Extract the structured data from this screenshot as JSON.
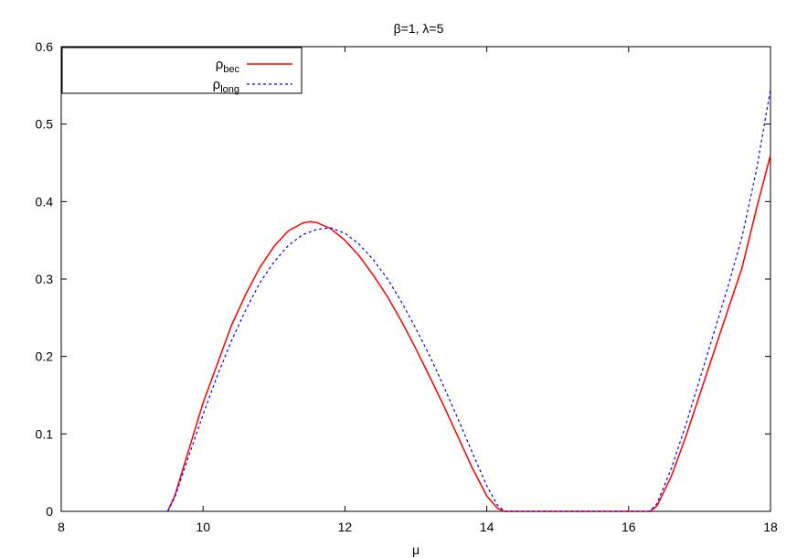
{
  "chart_data": {
    "type": "line",
    "title": "β=1, λ=5",
    "xlabel": "μ",
    "ylabel": "",
    "xlim": [
      8,
      18
    ],
    "ylim": [
      0,
      0.6
    ],
    "x_ticks": [
      "8",
      "10",
      "12",
      "14",
      "16",
      "18"
    ],
    "y_ticks": [
      "0",
      "0.1",
      "0.2",
      "0.3",
      "0.4",
      "0.5",
      "0.6"
    ],
    "grid": false,
    "legend_position": "top-left",
    "series": [
      {
        "name_main": "ρ",
        "name_sub": "bec",
        "color": "#ff0000",
        "style": "solid",
        "points": [
          [
            9.5,
            0.0
          ],
          [
            9.6,
            0.02
          ],
          [
            9.8,
            0.08
          ],
          [
            10.0,
            0.14
          ],
          [
            10.2,
            0.19
          ],
          [
            10.4,
            0.24
          ],
          [
            10.6,
            0.28
          ],
          [
            10.8,
            0.315
          ],
          [
            11.0,
            0.342
          ],
          [
            11.2,
            0.362
          ],
          [
            11.4,
            0.372
          ],
          [
            11.5,
            0.374
          ],
          [
            11.6,
            0.373
          ],
          [
            11.8,
            0.365
          ],
          [
            12.0,
            0.35
          ],
          [
            12.2,
            0.33
          ],
          [
            12.4,
            0.305
          ],
          [
            12.6,
            0.277
          ],
          [
            12.8,
            0.245
          ],
          [
            13.0,
            0.21
          ],
          [
            13.2,
            0.173
          ],
          [
            13.4,
            0.135
          ],
          [
            13.6,
            0.095
          ],
          [
            13.8,
            0.055
          ],
          [
            14.0,
            0.02
          ],
          [
            14.15,
            0.004
          ],
          [
            14.25,
            0.0
          ],
          [
            16.3,
            0.0
          ],
          [
            16.4,
            0.007
          ],
          [
            16.6,
            0.045
          ],
          [
            16.8,
            0.095
          ],
          [
            17.0,
            0.15
          ],
          [
            17.2,
            0.205
          ],
          [
            17.4,
            0.26
          ],
          [
            17.6,
            0.315
          ],
          [
            17.8,
            0.39
          ],
          [
            18.0,
            0.46
          ]
        ]
      },
      {
        "name_main": "ρ",
        "name_sub": "long",
        "color": "#0000ff",
        "style": "dashed",
        "points": [
          [
            9.5,
            0.0
          ],
          [
            9.6,
            0.018
          ],
          [
            9.8,
            0.072
          ],
          [
            10.0,
            0.125
          ],
          [
            10.2,
            0.175
          ],
          [
            10.4,
            0.22
          ],
          [
            10.6,
            0.26
          ],
          [
            10.8,
            0.295
          ],
          [
            11.0,
            0.322
          ],
          [
            11.2,
            0.343
          ],
          [
            11.4,
            0.357
          ],
          [
            11.6,
            0.364
          ],
          [
            11.8,
            0.366
          ],
          [
            12.0,
            0.359
          ],
          [
            12.2,
            0.345
          ],
          [
            12.4,
            0.325
          ],
          [
            12.6,
            0.3
          ],
          [
            12.8,
            0.27
          ],
          [
            13.0,
            0.236
          ],
          [
            13.2,
            0.2
          ],
          [
            13.4,
            0.16
          ],
          [
            13.6,
            0.118
          ],
          [
            13.8,
            0.075
          ],
          [
            14.0,
            0.033
          ],
          [
            14.15,
            0.008
          ],
          [
            14.25,
            0.0
          ],
          [
            16.3,
            0.0
          ],
          [
            16.4,
            0.01
          ],
          [
            16.6,
            0.055
          ],
          [
            16.8,
            0.11
          ],
          [
            17.0,
            0.17
          ],
          [
            17.2,
            0.23
          ],
          [
            17.4,
            0.29
          ],
          [
            17.6,
            0.355
          ],
          [
            17.8,
            0.44
          ],
          [
            18.0,
            0.545
          ]
        ]
      }
    ]
  }
}
